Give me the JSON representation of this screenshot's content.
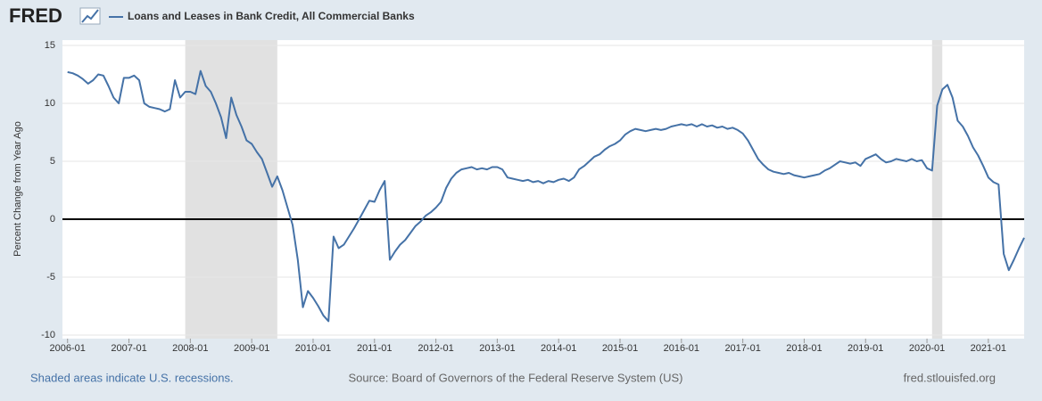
{
  "logo": "FRED",
  "chart_data": {
    "type": "line",
    "ylabel": "Percent Change from Year Ago",
    "x": [
      "2006-01",
      "2006-02",
      "2006-03",
      "2006-04",
      "2006-05",
      "2006-06",
      "2006-07",
      "2006-08",
      "2006-09",
      "2006-10",
      "2006-11",
      "2006-12",
      "2007-01",
      "2007-02",
      "2007-03",
      "2007-04",
      "2007-05",
      "2007-06",
      "2007-07",
      "2007-08",
      "2007-09",
      "2007-10",
      "2007-11",
      "2007-12",
      "2008-01",
      "2008-02",
      "2008-03",
      "2008-04",
      "2008-05",
      "2008-06",
      "2008-07",
      "2008-08",
      "2008-09",
      "2008-10",
      "2008-11",
      "2008-12",
      "2009-01",
      "2009-02",
      "2009-03",
      "2009-04",
      "2009-05",
      "2009-06",
      "2009-07",
      "2009-08",
      "2009-09",
      "2009-10",
      "2009-11",
      "2009-12",
      "2010-01",
      "2010-02",
      "2010-03",
      "2010-04",
      "2010-05",
      "2010-06",
      "2010-07",
      "2010-08",
      "2010-09",
      "2010-10",
      "2010-11",
      "2010-12",
      "2011-01",
      "2011-02",
      "2011-03",
      "2011-04",
      "2011-05",
      "2011-06",
      "2011-07",
      "2011-08",
      "2011-09",
      "2011-10",
      "2011-11",
      "2011-12",
      "2012-01",
      "2012-02",
      "2012-03",
      "2012-04",
      "2012-05",
      "2012-06",
      "2012-07",
      "2012-08",
      "2012-09",
      "2012-10",
      "2012-11",
      "2012-12",
      "2013-01",
      "2013-02",
      "2013-03",
      "2013-04",
      "2013-05",
      "2013-06",
      "2013-07",
      "2013-08",
      "2013-09",
      "2013-10",
      "2013-11",
      "2013-12",
      "2014-01",
      "2014-02",
      "2014-03",
      "2014-04",
      "2014-05",
      "2014-06",
      "2014-07",
      "2014-08",
      "2014-09",
      "2014-10",
      "2014-11",
      "2014-12",
      "2015-01",
      "2015-02",
      "2015-03",
      "2015-04",
      "2015-05",
      "2015-06",
      "2015-07",
      "2015-08",
      "2015-09",
      "2015-10",
      "2015-11",
      "2015-12",
      "2016-01",
      "2016-02",
      "2016-03",
      "2016-04",
      "2016-05",
      "2016-06",
      "2016-07",
      "2016-08",
      "2016-09",
      "2016-10",
      "2016-11",
      "2016-12",
      "2017-01",
      "2017-02",
      "2017-03",
      "2017-04",
      "2017-05",
      "2017-06",
      "2017-07",
      "2017-08",
      "2017-09",
      "2017-10",
      "2017-11",
      "2017-12",
      "2018-01",
      "2018-02",
      "2018-03",
      "2018-04",
      "2018-05",
      "2018-06",
      "2018-07",
      "2018-08",
      "2018-09",
      "2018-10",
      "2018-11",
      "2018-12",
      "2019-01",
      "2019-02",
      "2019-03",
      "2019-04",
      "2019-05",
      "2019-06",
      "2019-07",
      "2019-08",
      "2019-09",
      "2019-10",
      "2019-11",
      "2019-12",
      "2020-01",
      "2020-02",
      "2020-03",
      "2020-04",
      "2020-05",
      "2020-06",
      "2020-07",
      "2020-08",
      "2020-09",
      "2020-10",
      "2020-11",
      "2020-12",
      "2021-01",
      "2021-02",
      "2021-03",
      "2021-04",
      "2021-05",
      "2021-06",
      "2021-07",
      "2021-08"
    ],
    "series": [
      {
        "name": "Loans and Leases in Bank Credit, All Commercial Banks",
        "color": "#4572a7",
        "values": [
          12.7,
          12.6,
          12.4,
          12.1,
          11.7,
          12.0,
          12.5,
          12.4,
          11.5,
          10.5,
          10.0,
          12.2,
          12.2,
          12.4,
          12.0,
          10.0,
          9.7,
          9.6,
          9.5,
          9.3,
          9.5,
          12.0,
          10.5,
          11.0,
          11.0,
          10.8,
          12.8,
          11.5,
          11.0,
          10.0,
          8.8,
          7.0,
          10.5,
          9.0,
          8.0,
          6.8,
          6.5,
          5.8,
          5.2,
          4.0,
          2.8,
          3.7,
          2.5,
          1.0,
          -0.5,
          -3.5,
          -7.6,
          -6.2,
          -6.8,
          -7.5,
          -8.3,
          -8.8,
          -1.5,
          -2.5,
          -2.2,
          -1.5,
          -0.8,
          0.0,
          0.8,
          1.6,
          1.5,
          2.5,
          3.3,
          -3.5,
          -2.8,
          -2.2,
          -1.8,
          -1.2,
          -0.6,
          -0.2,
          0.3,
          0.6,
          1.0,
          1.5,
          2.7,
          3.5,
          4.0,
          4.3,
          4.4,
          4.5,
          4.3,
          4.4,
          4.3,
          4.5,
          4.5,
          4.3,
          3.6,
          3.5,
          3.4,
          3.3,
          3.4,
          3.2,
          3.3,
          3.1,
          3.3,
          3.2,
          3.4,
          3.5,
          3.3,
          3.6,
          4.3,
          4.6,
          5.0,
          5.4,
          5.6,
          6.0,
          6.3,
          6.5,
          6.8,
          7.3,
          7.6,
          7.8,
          7.7,
          7.6,
          7.7,
          7.8,
          7.7,
          7.8,
          8.0,
          8.1,
          8.2,
          8.1,
          8.2,
          8.0,
          8.2,
          8.0,
          8.1,
          7.9,
          8.0,
          7.8,
          7.9,
          7.7,
          7.4,
          6.8,
          6.0,
          5.2,
          4.7,
          4.3,
          4.1,
          4.0,
          3.9,
          4.0,
          3.8,
          3.7,
          3.6,
          3.7,
          3.8,
          3.9,
          4.2,
          4.4,
          4.7,
          5.0,
          4.9,
          4.8,
          4.9,
          4.6,
          5.2,
          5.4,
          5.6,
          5.2,
          4.9,
          5.0,
          5.2,
          5.1,
          5.0,
          5.2,
          5.0,
          5.1,
          4.4,
          4.2,
          9.8,
          11.2,
          11.6,
          10.5,
          8.5,
          8.0,
          7.2,
          6.2,
          5.5,
          4.6,
          3.6,
          3.2,
          3.0,
          -3.0,
          -4.4,
          -3.5,
          -2.5,
          -1.6
        ]
      }
    ],
    "recessions": [
      [
        "2007-12",
        "2009-06"
      ],
      [
        "2020-02",
        "2020-04"
      ]
    ],
    "xlim": [
      "2005-12",
      "2021-08"
    ],
    "xticks": [
      "2006-01",
      "2007-01",
      "2008-01",
      "2009-01",
      "2010-01",
      "2011-01",
      "2012-01",
      "2013-01",
      "2014-01",
      "2015-01",
      "2016-01",
      "2017-01",
      "2018-01",
      "2019-01",
      "2020-01",
      "2021-01"
    ],
    "ylim": [
      -10,
      15
    ],
    "yticks": [
      -10,
      -5,
      0,
      5,
      10,
      15
    ],
    "grid": true
  },
  "footer": {
    "left": "Shaded areas indicate U.S. recessions.",
    "center": "Source: Board of Governors of the Federal Reserve System (US)",
    "right": "fred.stlouisfed.org"
  }
}
